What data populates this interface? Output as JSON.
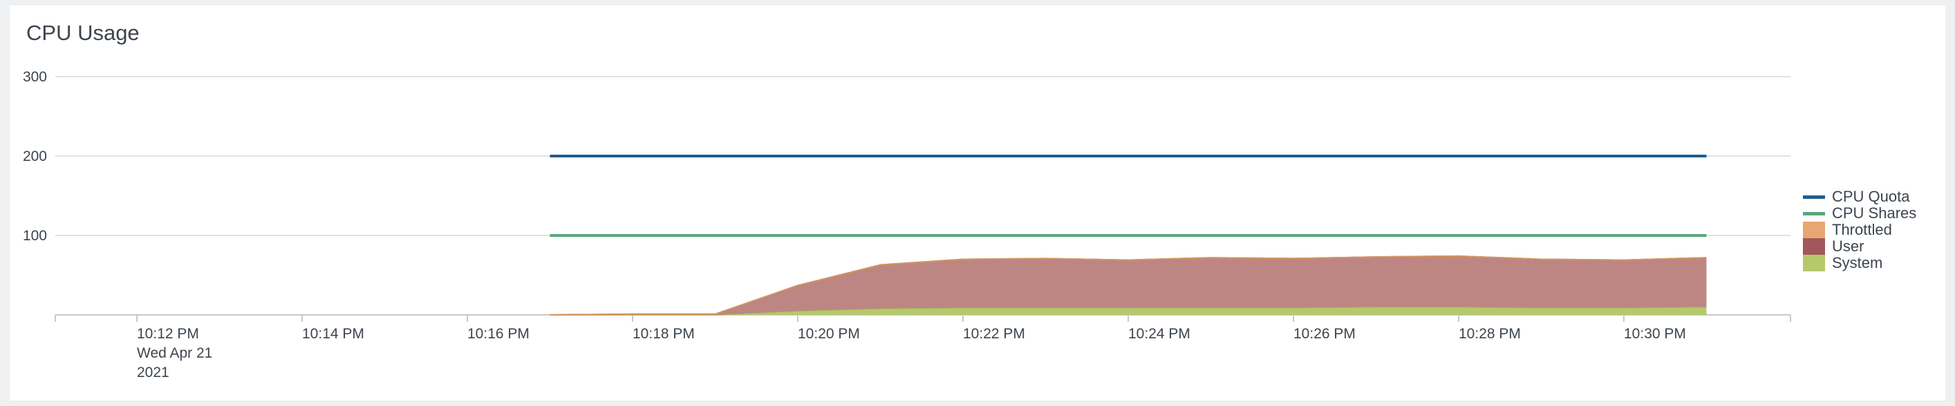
{
  "panel": {
    "title": "CPU Usage"
  },
  "chart_data": {
    "type": "area",
    "title": "CPU Usage",
    "xlabel": "",
    "ylabel": "",
    "ylim": [
      0,
      300
    ],
    "yticks": [
      100,
      200,
      300
    ],
    "xticks": [
      {
        "value": "10:12 PM",
        "sub": [
          "Wed Apr 21",
          "2021"
        ]
      },
      {
        "value": "10:14 PM"
      },
      {
        "value": "10:16 PM"
      },
      {
        "value": "10:18 PM"
      },
      {
        "value": "10:20 PM"
      },
      {
        "value": "10:22 PM"
      },
      {
        "value": "10:24 PM"
      },
      {
        "value": "10:26 PM"
      },
      {
        "value": "10:28 PM"
      },
      {
        "value": "10:30 PM"
      }
    ],
    "xlim": [
      "10:10 PM",
      "10:31 PM"
    ],
    "x": [
      "10:17 PM",
      "10:18 PM",
      "10:19 PM",
      "10:20 PM",
      "10:21 PM",
      "10:22 PM",
      "10:23 PM",
      "10:24 PM",
      "10:25 PM",
      "10:26 PM",
      "10:27 PM",
      "10:28 PM",
      "10:29 PM",
      "10:30 PM",
      "10:31 PM"
    ],
    "grid": true,
    "legend_position": "right",
    "series": [
      {
        "name": "System",
        "kind": "area",
        "color": "#b5c96a",
        "values": [
          0,
          0,
          0,
          5,
          8,
          9,
          9,
          9,
          9,
          9,
          10,
          10,
          9,
          9,
          10
        ]
      },
      {
        "name": "User",
        "kind": "area",
        "color": "#bd8683",
        "values": [
          0,
          1,
          1,
          32,
          55,
          61,
          62,
          60,
          63,
          62,
          63,
          64,
          61,
          60,
          62
        ]
      },
      {
        "name": "Throttled",
        "kind": "area",
        "color": "#e8a673",
        "values": [
          0,
          0,
          0,
          0,
          0,
          0,
          0,
          0,
          0,
          0,
          0,
          0,
          0,
          0,
          0
        ]
      },
      {
        "name": "CPU Shares",
        "kind": "line",
        "color": "#5ba57e",
        "values": [
          100,
          100,
          100,
          100,
          100,
          100,
          100,
          100,
          100,
          100,
          100,
          100,
          100,
          100,
          100
        ]
      },
      {
        "name": "CPU Quota",
        "kind": "line",
        "color": "#1f5f93",
        "values": [
          200,
          200,
          200,
          200,
          200,
          200,
          200,
          200,
          200,
          200,
          200,
          200,
          200,
          200,
          200
        ]
      }
    ],
    "legend": [
      {
        "name": "CPU Quota",
        "kind": "line",
        "color": "#1f5f93"
      },
      {
        "name": "CPU Shares",
        "kind": "line",
        "color": "#5ba57e"
      },
      {
        "name": "Throttled",
        "kind": "box",
        "color": "#e8a673"
      },
      {
        "name": "User",
        "kind": "box",
        "color": "#a2575a"
      },
      {
        "name": "System",
        "kind": "box",
        "color": "#b5c96a"
      }
    ]
  }
}
